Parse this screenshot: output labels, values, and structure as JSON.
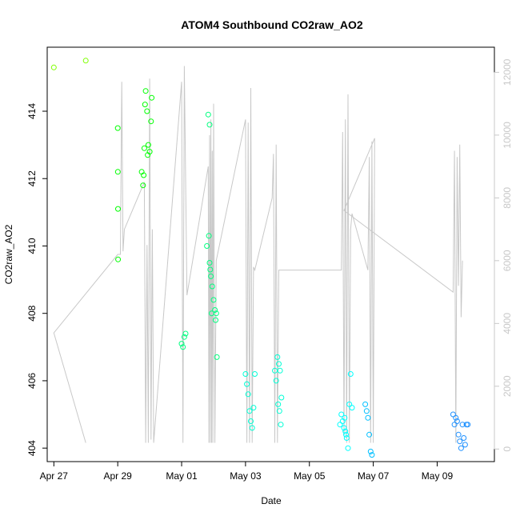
{
  "chart_data": {
    "type": "scatter",
    "title": "ATOM4 Southbound CO2raw_AO2",
    "xlabel": "Date",
    "ylabel": "CO2raw_AO2",
    "x_ticks": [
      "Apr 27",
      "Apr 29",
      "May 01",
      "May 03",
      "May 05",
      "May 07",
      "May 09"
    ],
    "xlim": [
      "2016-04-26T19:00",
      "2016-05-10T19:00"
    ],
    "ylim": [
      403.6,
      415.9
    ],
    "y_ticks": [
      404,
      406,
      408,
      410,
      412,
      414
    ],
    "y2_ticks": [
      0,
      2000,
      4000,
      6000,
      8000,
      10000,
      12000
    ],
    "y2lim": [
      -400,
      12800
    ],
    "series": [
      {
        "type": "scatter",
        "color_scale": [
          "#7fff00",
          "#00ff00",
          "#00ff7f",
          "#00ffd5",
          "#00ffff",
          "#00bfff",
          "#1e90ff"
        ],
        "points": [
          [
            "2016-04-27T00:00",
            415.3
          ],
          [
            "2016-04-28T00:00",
            415.5
          ],
          [
            "2016-04-29T00:00",
            413.5
          ],
          [
            "2016-04-29T00:05",
            412.2
          ],
          [
            "2016-04-29T00:10",
            411.1
          ],
          [
            "2016-04-29T00:15",
            409.6
          ],
          [
            "2016-04-29T18:00",
            412.2
          ],
          [
            "2016-04-29T19:00",
            411.8
          ],
          [
            "2016-04-29T20:00",
            412.9
          ],
          [
            "2016-04-29T20:30",
            414.2
          ],
          [
            "2016-04-29T21:00",
            414.6
          ],
          [
            "2016-04-29T22:00",
            414.0
          ],
          [
            "2016-04-29T23:00",
            413.0
          ],
          [
            "2016-04-30T00:00",
            412.8
          ],
          [
            "2016-04-30T01:00",
            413.7
          ],
          [
            "2016-04-30T01:30",
            414.4
          ],
          [
            "2016-04-29T19:30",
            412.1
          ],
          [
            "2016-04-29T22:30",
            412.7
          ],
          [
            "2016-05-01T00:00",
            407.1
          ],
          [
            "2016-05-01T01:00",
            407.0
          ],
          [
            "2016-05-01T02:00",
            407.3
          ],
          [
            "2016-05-01T03:00",
            407.4
          ],
          [
            "2016-05-01T20:00",
            413.9
          ],
          [
            "2016-05-01T21:00",
            413.6
          ],
          [
            "2016-05-01T19:00",
            410.0
          ],
          [
            "2016-05-01T20:30",
            410.3
          ],
          [
            "2016-05-01T21:00",
            409.5
          ],
          [
            "2016-05-01T22:00",
            409.1
          ],
          [
            "2016-05-01T23:00",
            408.8
          ],
          [
            "2016-05-02T00:00",
            408.4
          ],
          [
            "2016-05-02T01:00",
            408.1
          ],
          [
            "2016-05-02T02:00",
            408.0
          ],
          [
            "2016-05-02T01:30",
            407.8
          ],
          [
            "2016-05-02T02:30",
            406.7
          ],
          [
            "2016-05-01T21:30",
            409.3
          ],
          [
            "2016-05-01T22:30",
            408.0
          ],
          [
            "2016-05-03T00:00",
            406.2
          ],
          [
            "2016-05-03T01:00",
            405.9
          ],
          [
            "2016-05-03T02:00",
            405.6
          ],
          [
            "2016-05-03T03:00",
            405.1
          ],
          [
            "2016-05-03T04:00",
            404.8
          ],
          [
            "2016-05-03T05:00",
            404.6
          ],
          [
            "2016-05-03T06:00",
            405.2
          ],
          [
            "2016-05-03T07:00",
            406.2
          ],
          [
            "2016-05-03T22:00",
            406.3
          ],
          [
            "2016-05-03T23:00",
            406.0
          ],
          [
            "2016-05-04T00:00",
            406.7
          ],
          [
            "2016-05-04T01:00",
            406.5
          ],
          [
            "2016-05-04T02:00",
            406.3
          ],
          [
            "2016-05-04T03:00",
            405.5
          ],
          [
            "2016-05-04T00:30",
            405.3
          ],
          [
            "2016-05-04T01:30",
            405.1
          ],
          [
            "2016-05-04T02:30",
            404.7
          ],
          [
            "2016-05-06T00:00",
            405.0
          ],
          [
            "2016-05-06T01:00",
            404.8
          ],
          [
            "2016-05-06T02:00",
            404.6
          ],
          [
            "2016-05-06T03:00",
            404.5
          ],
          [
            "2016-05-06T04:00",
            404.3
          ],
          [
            "2016-05-06T05:00",
            404.0
          ],
          [
            "2016-05-06T06:00",
            405.3
          ],
          [
            "2016-05-06T07:00",
            406.2
          ],
          [
            "2016-05-06T08:00",
            405.2
          ],
          [
            "2016-05-05T23:00",
            404.7
          ],
          [
            "2016-05-06T02:30",
            404.9
          ],
          [
            "2016-05-06T03:30",
            404.4
          ],
          [
            "2016-05-06T18:00",
            405.3
          ],
          [
            "2016-05-06T19:00",
            405.1
          ],
          [
            "2016-05-06T20:00",
            404.9
          ],
          [
            "2016-05-06T21:00",
            404.4
          ],
          [
            "2016-05-06T22:00",
            403.9
          ],
          [
            "2016-05-06T23:00",
            403.8
          ],
          [
            "2016-05-09T12:00",
            405.0
          ],
          [
            "2016-05-09T13:00",
            404.7
          ],
          [
            "2016-05-09T14:00",
            404.9
          ],
          [
            "2016-05-09T15:00",
            404.8
          ],
          [
            "2016-05-09T16:00",
            404.4
          ],
          [
            "2016-05-09T17:00",
            404.2
          ],
          [
            "2016-05-09T18:00",
            404.0
          ],
          [
            "2016-05-09T19:00",
            404.7
          ],
          [
            "2016-05-09T20:00",
            404.3
          ],
          [
            "2016-05-09T21:00",
            404.1
          ],
          [
            "2016-05-09T22:00",
            404.7
          ],
          [
            "2016-05-09T23:00",
            404.7
          ]
        ]
      },
      {
        "type": "line",
        "axis": "right",
        "color": "#c8c8c8",
        "points": [
          [
            "2016-04-27T00:00",
            3700
          ],
          [
            "2016-04-28T00:00",
            200
          ],
          [
            "2016-04-27T00:00",
            3700
          ],
          [
            "2016-04-29T00:00",
            6200
          ],
          [
            "2016-04-29T02:00",
            6200
          ],
          [
            "2016-04-29T03:00",
            11700
          ],
          [
            "2016-04-29T04:00",
            6300
          ],
          [
            "2016-04-29T05:00",
            7000
          ],
          [
            "2016-04-29T20:00",
            8500
          ],
          [
            "2016-04-29T21:00",
            200
          ],
          [
            "2016-04-29T22:00",
            6500
          ],
          [
            "2016-04-29T23:00",
            200
          ],
          [
            "2016-04-30T00:00",
            11800
          ],
          [
            "2016-04-30T01:00",
            300
          ],
          [
            "2016-04-30T02:00",
            7000
          ],
          [
            "2016-04-30T03:00",
            200
          ],
          [
            "2016-05-01T00:00",
            11700
          ],
          [
            "2016-05-01T01:00",
            200
          ],
          [
            "2016-05-01T02:00",
            12200
          ],
          [
            "2016-05-01T04:00",
            4900
          ],
          [
            "2016-05-01T20:00",
            9000
          ],
          [
            "2016-05-01T20:30",
            200
          ],
          [
            "2016-05-01T21:00",
            10000
          ],
          [
            "2016-05-01T21:30",
            200
          ],
          [
            "2016-05-01T22:00",
            10500
          ],
          [
            "2016-05-01T22:30",
            200
          ],
          [
            "2016-05-01T23:00",
            9500
          ],
          [
            "2016-05-01T23:30",
            200
          ],
          [
            "2016-05-02T00:00",
            11000
          ],
          [
            "2016-05-02T01:00",
            200
          ],
          [
            "2016-05-02T02:00",
            6000
          ],
          [
            "2016-05-03T00:00",
            10500
          ],
          [
            "2016-05-03T01:00",
            200
          ],
          [
            "2016-05-03T02:00",
            10400
          ],
          [
            "2016-05-03T03:00",
            200
          ],
          [
            "2016-05-03T04:00",
            11500
          ],
          [
            "2016-05-03T05:00",
            200
          ],
          [
            "2016-05-03T06:00",
            5800
          ],
          [
            "2016-05-03T07:00",
            5700
          ],
          [
            "2016-05-03T20:00",
            8000
          ],
          [
            "2016-05-03T21:00",
            9400
          ],
          [
            "2016-05-03T22:00",
            200
          ],
          [
            "2016-05-03T23:00",
            9700
          ],
          [
            "2016-05-04T00:00",
            200
          ],
          [
            "2016-05-04T01:00",
            5700
          ],
          [
            "2016-05-06T00:00",
            5700
          ],
          [
            "2016-05-06T01:00",
            10100
          ],
          [
            "2016-05-06T02:00",
            400
          ],
          [
            "2016-05-06T03:00",
            10500
          ],
          [
            "2016-05-06T04:00",
            200
          ],
          [
            "2016-05-06T05:00",
            11300
          ],
          [
            "2016-05-06T06:00",
            200
          ],
          [
            "2016-05-06T07:00",
            7000
          ],
          [
            "2016-05-06T08:00",
            7500
          ],
          [
            "2016-05-06T20:00",
            5700
          ],
          [
            "2016-05-06T21:00",
            9300
          ],
          [
            "2016-05-06T22:00",
            200
          ],
          [
            "2016-05-06T23:00",
            9800
          ],
          [
            "2016-05-07T00:00",
            200
          ],
          [
            "2016-05-07T01:00",
            9900
          ],
          [
            "2016-05-06T02:00",
            7600
          ],
          [
            "2016-05-09T12:00",
            5000
          ],
          [
            "2016-05-09T13:00",
            9500
          ],
          [
            "2016-05-09T14:00",
            200
          ],
          [
            "2016-05-09T15:00",
            9300
          ],
          [
            "2016-05-09T16:00",
            5200
          ],
          [
            "2016-05-09T17:00",
            9700
          ],
          [
            "2016-05-09T18:00",
            4200
          ],
          [
            "2016-05-09T19:00",
            6000
          ]
        ]
      }
    ]
  }
}
